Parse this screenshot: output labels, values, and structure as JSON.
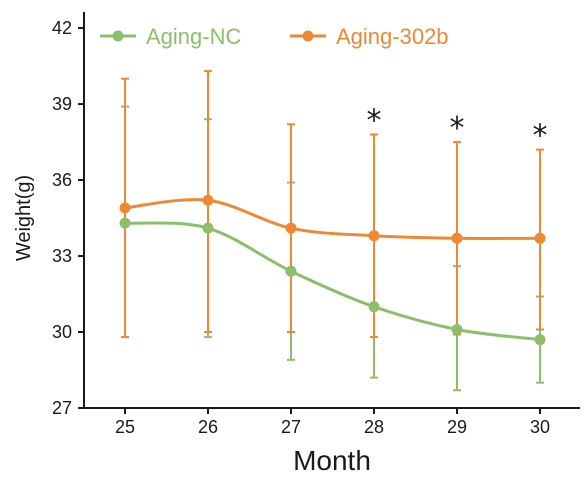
{
  "chart_data": {
    "type": "line",
    "title": "",
    "xlabel": "Month",
    "ylabel": "Weight(g)",
    "x": [
      25,
      26,
      27,
      28,
      29,
      30
    ],
    "x_tick_labels": [
      "25",
      "26",
      "27",
      "28",
      "29",
      "30"
    ],
    "ylim": [
      27,
      42
    ],
    "y_ticks": [
      27,
      30,
      33,
      36,
      39,
      42
    ],
    "y_tick_labels": [
      "27",
      "30",
      "33",
      "36",
      "39",
      "42"
    ],
    "grid": false,
    "legend_position": "top",
    "series": [
      {
        "name": "Aging-NC",
        "color": "#8dbf6a",
        "values": [
          34.3,
          34.1,
          32.4,
          31.0,
          30.1,
          29.7
        ],
        "error_low": [
          29.8,
          29.8,
          28.9,
          28.2,
          27.7,
          28.0
        ],
        "error_high": [
          38.9,
          38.4,
          35.9,
          33.9,
          32.6,
          31.4
        ]
      },
      {
        "name": "Aging-302b",
        "color": "#ef8833",
        "values": [
          34.9,
          35.2,
          34.1,
          33.8,
          33.7,
          33.7
        ],
        "error_low": [
          29.8,
          30.0,
          30.0,
          29.8,
          29.9,
          30.1
        ],
        "error_high": [
          40.0,
          40.3,
          38.2,
          37.8,
          37.5,
          37.2
        ]
      }
    ],
    "annotations": [
      {
        "x": 28,
        "text": "*"
      },
      {
        "x": 29,
        "text": "*"
      },
      {
        "x": 30,
        "text": "*"
      }
    ]
  }
}
